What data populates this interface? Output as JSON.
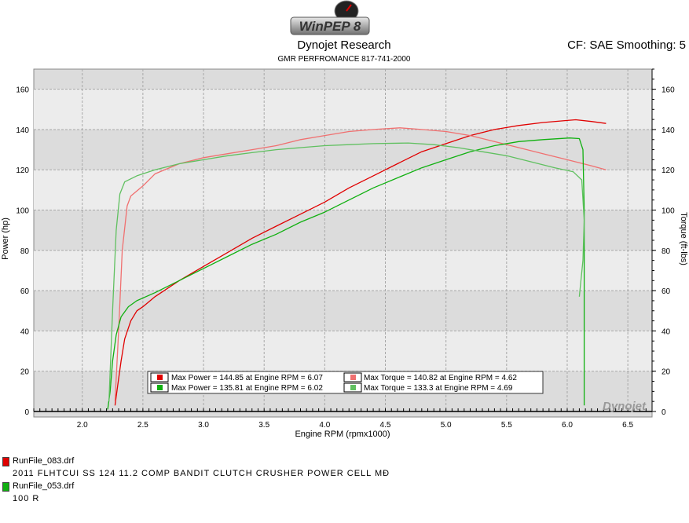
{
  "header": {
    "logo_text": "WinPEP 8",
    "title": "Dynojet Research",
    "subtitle": "GMR PERFROMANCE 817-741-2000",
    "settings_text": "CF: SAE Smoothing: 5",
    "watermark": "Dynojet"
  },
  "colors": {
    "run1_power": "#e00000",
    "run1_torque": "#f07070",
    "run2_power": "#10b010",
    "run2_torque": "#60c060"
  },
  "chart_data": {
    "type": "line",
    "xlabel": "Engine RPM (rpmx1000)",
    "ylabel_left": "Power (hp)",
    "ylabel_right": "Torque (ft-lbs)",
    "xlim": [
      1.6,
      6.7
    ],
    "ylim": [
      0,
      170
    ],
    "x_ticks": [
      "2.0",
      "2.5",
      "3.0",
      "3.5",
      "4.0",
      "4.5",
      "5.0",
      "5.5",
      "6.0",
      "6.5"
    ],
    "y_ticks": [
      "0",
      "20",
      "40",
      "60",
      "80",
      "100",
      "120",
      "140",
      "160"
    ],
    "grid": true,
    "series": [
      {
        "name": "Max Power = 144.85 at Engine RPM = 6.07",
        "color_key": "run1_power",
        "points": [
          [
            2.27,
            3
          ],
          [
            2.29,
            12
          ],
          [
            2.32,
            25
          ],
          [
            2.35,
            36
          ],
          [
            2.4,
            45
          ],
          [
            2.45,
            50
          ],
          [
            2.5,
            52
          ],
          [
            2.6,
            57
          ],
          [
            2.8,
            65
          ],
          [
            3.0,
            72
          ],
          [
            3.2,
            79
          ],
          [
            3.4,
            86
          ],
          [
            3.6,
            92
          ],
          [
            3.8,
            98
          ],
          [
            4.0,
            104
          ],
          [
            4.2,
            111
          ],
          [
            4.4,
            117
          ],
          [
            4.6,
            123
          ],
          [
            4.8,
            129
          ],
          [
            5.0,
            133
          ],
          [
            5.2,
            137
          ],
          [
            5.4,
            140
          ],
          [
            5.6,
            142
          ],
          [
            5.8,
            143.5
          ],
          [
            6.0,
            144.5
          ],
          [
            6.07,
            144.85
          ],
          [
            6.2,
            144
          ],
          [
            6.32,
            143
          ]
        ]
      },
      {
        "name": "Max Torque = 140.82 at Engine RPM = 4.62",
        "color_key": "run1_torque",
        "points": [
          [
            2.27,
            5
          ],
          [
            2.3,
            40
          ],
          [
            2.33,
            80
          ],
          [
            2.37,
            102
          ],
          [
            2.4,
            107
          ],
          [
            2.5,
            112
          ],
          [
            2.6,
            118
          ],
          [
            2.8,
            123
          ],
          [
            3.0,
            126
          ],
          [
            3.2,
            128
          ],
          [
            3.4,
            130
          ],
          [
            3.6,
            132
          ],
          [
            3.8,
            135
          ],
          [
            4.0,
            137
          ],
          [
            4.2,
            139
          ],
          [
            4.4,
            140
          ],
          [
            4.62,
            140.82
          ],
          [
            4.8,
            140
          ],
          [
            5.0,
            139
          ],
          [
            5.2,
            137
          ],
          [
            5.4,
            134
          ],
          [
            5.6,
            131
          ],
          [
            5.8,
            128
          ],
          [
            6.0,
            125
          ],
          [
            6.2,
            122
          ],
          [
            6.32,
            120
          ]
        ]
      },
      {
        "name": "Max Power = 135.81 at Engine RPM = 6.02",
        "color_key": "run2_power",
        "points": [
          [
            2.21,
            1
          ],
          [
            2.23,
            10
          ],
          [
            2.25,
            25
          ],
          [
            2.28,
            38
          ],
          [
            2.32,
            47
          ],
          [
            2.38,
            52
          ],
          [
            2.45,
            55
          ],
          [
            2.6,
            59
          ],
          [
            2.8,
            65
          ],
          [
            3.0,
            71
          ],
          [
            3.2,
            77
          ],
          [
            3.4,
            83
          ],
          [
            3.6,
            88
          ],
          [
            3.8,
            94
          ],
          [
            4.0,
            99
          ],
          [
            4.2,
            105
          ],
          [
            4.4,
            111
          ],
          [
            4.6,
            116
          ],
          [
            4.8,
            121
          ],
          [
            5.0,
            125
          ],
          [
            5.2,
            129
          ],
          [
            5.4,
            132
          ],
          [
            5.6,
            134
          ],
          [
            5.8,
            135
          ],
          [
            6.02,
            135.81
          ],
          [
            6.1,
            135.5
          ],
          [
            6.13,
            130
          ],
          [
            6.14,
            100
          ],
          [
            6.14,
            60
          ],
          [
            6.14,
            20
          ],
          [
            6.14,
            3
          ]
        ]
      },
      {
        "name": "Max Torque = 133.3 at Engine RPM = 4.69",
        "color_key": "run2_torque",
        "points": [
          [
            2.22,
            5
          ],
          [
            2.25,
            50
          ],
          [
            2.28,
            90
          ],
          [
            2.31,
            108
          ],
          [
            2.35,
            114
          ],
          [
            2.45,
            117
          ],
          [
            2.6,
            120
          ],
          [
            2.8,
            123
          ],
          [
            3.0,
            125
          ],
          [
            3.2,
            127
          ],
          [
            3.4,
            128.5
          ],
          [
            3.6,
            130
          ],
          [
            3.8,
            131
          ],
          [
            4.0,
            132
          ],
          [
            4.2,
            132.5
          ],
          [
            4.4,
            133
          ],
          [
            4.69,
            133.3
          ],
          [
            4.9,
            132.5
          ],
          [
            5.1,
            131
          ],
          [
            5.3,
            129
          ],
          [
            5.5,
            127
          ],
          [
            5.7,
            124
          ],
          [
            5.9,
            121
          ],
          [
            6.05,
            119
          ],
          [
            6.12,
            115
          ],
          [
            6.14,
            95
          ],
          [
            6.13,
            75
          ],
          [
            6.1,
            57
          ]
        ]
      }
    ],
    "legend_position": "bottom-center"
  },
  "legend": {
    "entries": [
      {
        "label": "Max Power = 144.85 at Engine RPM = 6.07",
        "color_key": "run1_power"
      },
      {
        "label": "Max Torque = 140.82 at Engine RPM = 4.62",
        "color_key": "run1_torque"
      },
      {
        "label": "Max Power = 135.81 at Engine RPM = 6.02",
        "color_key": "run2_power"
      },
      {
        "label": "Max Torque = 133.3 at Engine RPM = 4.69",
        "color_key": "run2_torque"
      }
    ]
  },
  "runs": [
    {
      "file": "RunFile_083.drf",
      "description": "2011 FLHTCUI SS 124 11.2 COMP BANDIT CLUTCH CRUSHER POWER CELL MÐ",
      "color_key": "run1_power"
    },
    {
      "file": "RunFile_053.drf",
      "description": "100  R",
      "color_key": "run2_power"
    }
  ]
}
